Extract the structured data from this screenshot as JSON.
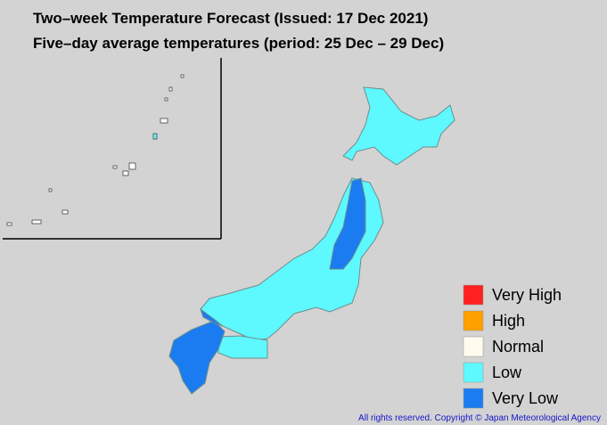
{
  "header": {
    "title": "Two–week Temperature Forecast (Issued: 17 Dec 2021)",
    "subtitle": "Five–day average temperatures (period: 25 Dec – 29 Dec)"
  },
  "legend": {
    "items": [
      {
        "label": "Very High",
        "color": "#ff2020"
      },
      {
        "label": "High",
        "color": "#ff9f00"
      },
      {
        "label": "Normal",
        "color": "#fffbee"
      },
      {
        "label": "Low",
        "color": "#5ef8ff"
      },
      {
        "label": "Very Low",
        "color": "#1a7cf0"
      }
    ]
  },
  "footer": {
    "copyright": "All rights reserved. Copyright © Japan Meteorological Agency"
  }
}
